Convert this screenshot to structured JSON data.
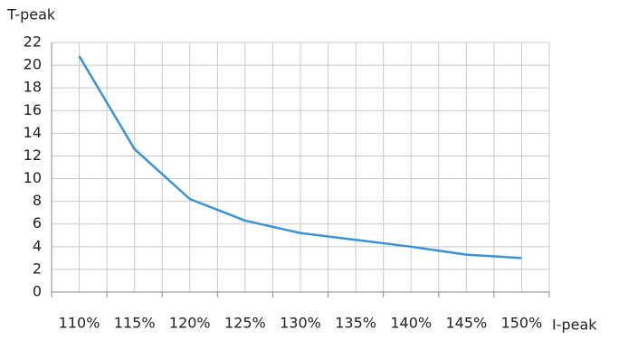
{
  "chart_data": {
    "type": "line",
    "y_label": "T-peak",
    "x_label": "I-peak",
    "categories": [
      "110%",
      "115%",
      "120%",
      "125%",
      "130%",
      "135%",
      "140%",
      "145%",
      "150%"
    ],
    "values": [
      20.8,
      12.6,
      8.2,
      6.3,
      5.2,
      4.6,
      4.0,
      3.3,
      3.0
    ],
    "color": "#3a93d0",
    "ylim": [
      0,
      22
    ],
    "yticks": [
      0,
      2,
      4,
      6,
      8,
      10,
      12,
      14,
      16,
      18,
      20,
      22
    ],
    "grid": true
  }
}
